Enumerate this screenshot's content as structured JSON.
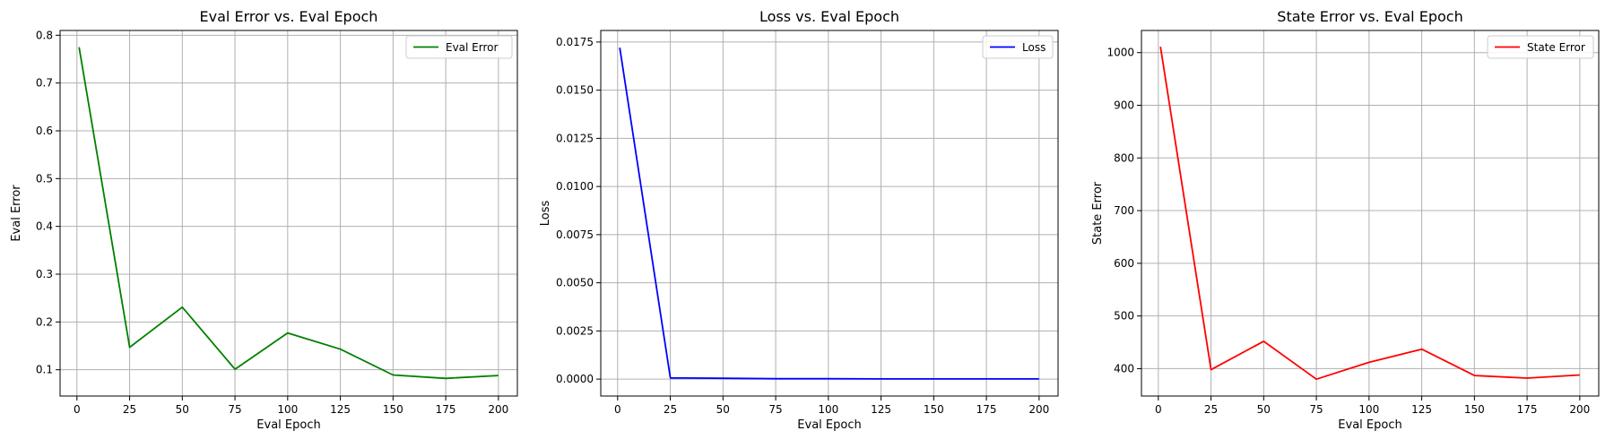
{
  "chart_data": [
    {
      "type": "line",
      "title": "Eval Error vs. Eval Epoch",
      "xlabel": "Eval Epoch",
      "ylabel": "Eval Error",
      "grid": true,
      "legend_position": "top-right",
      "xlim": [
        -8,
        209
      ],
      "ylim": [
        0.045,
        0.81
      ],
      "xticks": [
        0,
        25,
        50,
        75,
        100,
        125,
        150,
        175,
        200
      ],
      "yticks": [
        0.1,
        0.2,
        0.3,
        0.4,
        0.5,
        0.6,
        0.7,
        0.8
      ],
      "ytick_labels": [
        "0.1",
        "0.2",
        "0.3",
        "0.4",
        "0.5",
        "0.6",
        "0.7",
        "0.8"
      ],
      "series": [
        {
          "name": "Eval Error",
          "color": "#008000",
          "x": [
            1,
            25,
            50,
            75,
            100,
            125,
            150,
            175,
            200
          ],
          "y": [
            0.775,
            0.147,
            0.231,
            0.101,
            0.177,
            0.143,
            0.089,
            0.082,
            0.088
          ]
        }
      ]
    },
    {
      "type": "line",
      "title": "Loss vs. Eval Epoch",
      "xlabel": "Eval Epoch",
      "ylabel": "Loss",
      "grid": true,
      "legend_position": "top-right",
      "xlim": [
        -8,
        209
      ],
      "ylim": [
        -0.00088,
        0.0181
      ],
      "xticks": [
        0,
        25,
        50,
        75,
        100,
        125,
        150,
        175,
        200
      ],
      "yticks": [
        0.0,
        0.0025,
        0.005,
        0.0075,
        0.01,
        0.0125,
        0.015,
        0.0175
      ],
      "ytick_labels": [
        "0.0000",
        "0.0025",
        "0.0050",
        "0.0075",
        "0.0100",
        "0.0125",
        "0.0150",
        "0.0175"
      ],
      "series": [
        {
          "name": "Loss",
          "color": "#0000ff",
          "x": [
            1,
            25,
            50,
            75,
            100,
            125,
            150,
            175,
            200
          ],
          "y": [
            0.0172,
            6e-05,
            4e-05,
            2e-05,
            2e-05,
            1e-05,
            1e-05,
            1e-05,
            1e-05
          ]
        }
      ]
    },
    {
      "type": "line",
      "title": "State Error vs. Eval Epoch",
      "xlabel": "Eval Epoch",
      "ylabel": "State Error",
      "grid": true,
      "legend_position": "top-right",
      "xlim": [
        -8,
        209
      ],
      "ylim": [
        348,
        1042
      ],
      "xticks": [
        0,
        25,
        50,
        75,
        100,
        125,
        150,
        175,
        200
      ],
      "yticks": [
        400,
        500,
        600,
        700,
        800,
        900,
        1000
      ],
      "ytick_labels": [
        "400",
        "500",
        "600",
        "700",
        "800",
        "900",
        "1000"
      ],
      "series": [
        {
          "name": "State Error",
          "color": "#ff0000",
          "x": [
            1,
            25,
            50,
            75,
            100,
            125,
            150,
            175,
            200
          ],
          "y": [
            1011,
            398,
            452,
            380,
            412,
            437,
            387,
            382,
            388
          ]
        }
      ]
    }
  ]
}
